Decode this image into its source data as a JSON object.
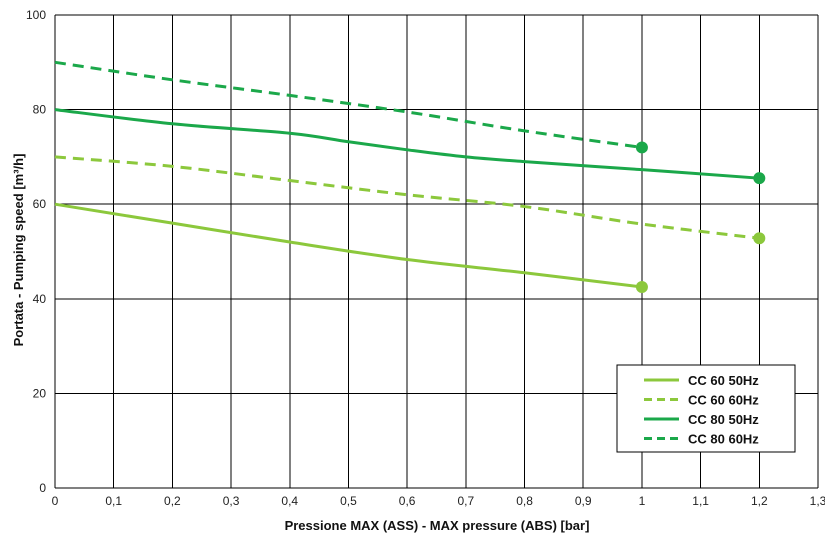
{
  "chart_data": {
    "type": "line",
    "title": "",
    "xlabel": "Pressione MAX  (ASS) - MAX pressure (ABS) [bar]",
    "ylabel": "Portata - Pumping speed [m³/h]",
    "xlim": [
      0,
      1.3
    ],
    "ylim": [
      0,
      100
    ],
    "x_ticks": [
      0,
      0.1,
      0.2,
      0.3,
      0.4,
      0.5,
      0.6,
      0.7,
      0.8,
      0.9,
      1,
      1.1,
      1.2,
      1.3
    ],
    "x_tick_labels": [
      "0",
      "0,1",
      "0,2",
      "0,3",
      "0,4",
      "0,5",
      "0,6",
      "0,7",
      "0,8",
      "0,9",
      "1",
      "1,1",
      "1,2",
      "1,3"
    ],
    "y_ticks": [
      0,
      20,
      40,
      60,
      80,
      100
    ],
    "y_tick_labels": [
      "0",
      "20",
      "40",
      "60",
      "80",
      "100"
    ],
    "grid": true,
    "legend_position": "bottom-right",
    "series": [
      {
        "name": "CC 60 50Hz",
        "color": "#8cc83c",
        "dash": "solid",
        "x": [
          0,
          0.2,
          0.4,
          0.6,
          0.8,
          1.0
        ],
        "values": [
          60,
          56,
          52,
          48.3,
          45.5,
          42.5
        ],
        "end_marker": true
      },
      {
        "name": "CC 60 60Hz",
        "color": "#8cc83c",
        "dash": "dashed",
        "x": [
          0,
          0.2,
          0.4,
          0.6,
          0.8,
          1.0,
          1.2
        ],
        "values": [
          70,
          68,
          65,
          62,
          59.5,
          55.8,
          52.8
        ],
        "end_marker": true
      },
      {
        "name": "CC 80 50Hz",
        "color": "#1ba84a",
        "dash": "solid",
        "x": [
          0,
          0.2,
          0.4,
          0.5,
          0.6,
          0.7,
          0.8,
          1.0,
          1.2
        ],
        "values": [
          80,
          77,
          75,
          73.2,
          71.5,
          70,
          69,
          67.3,
          65.5
        ],
        "end_marker": true
      },
      {
        "name": "CC 80 60Hz",
        "color": "#1ba84a",
        "dash": "dashed",
        "x": [
          0,
          0.2,
          0.4,
          0.6,
          0.8,
          1.0
        ],
        "values": [
          90,
          86.3,
          83,
          79.5,
          75.5,
          72
        ],
        "end_marker": true
      }
    ]
  }
}
